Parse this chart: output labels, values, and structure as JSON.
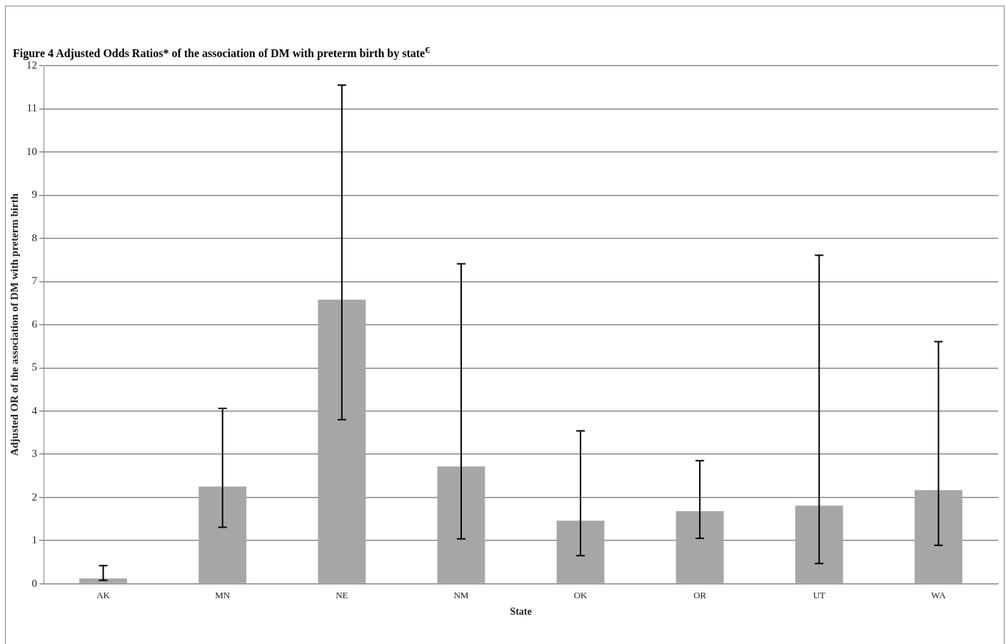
{
  "chart_data": {
    "type": "bar",
    "title": "Figure 4 Adjusted Odds Ratios* of the association of DM with preterm birth by state$^{€}$",
    "xlabel": "State",
    "ylabel": "Adjusted OR of the association of DM with preterm birth",
    "categories": [
      "AK",
      "MN",
      "NE",
      "NM",
      "OK",
      "OR",
      "UT",
      "WA"
    ],
    "values": [
      0.12,
      2.25,
      6.58,
      2.72,
      1.46,
      1.68,
      1.81,
      2.17
    ],
    "errors": [
      [
        0.08,
        0.42
      ],
      [
        1.31,
        4.06
      ],
      [
        3.8,
        11.55
      ],
      [
        1.04,
        7.41
      ],
      [
        0.65,
        3.54
      ],
      [
        1.05,
        2.85
      ],
      [
        0.47,
        7.61
      ],
      [
        0.89,
        5.61
      ]
    ],
    "color": "#a6a6a6",
    "ylim": [
      0,
      12
    ],
    "yticks": [
      0,
      1,
      2,
      3,
      4,
      5,
      6,
      7,
      8,
      9,
      10,
      11,
      12
    ],
    "grid": "y",
    "legend": false
  }
}
